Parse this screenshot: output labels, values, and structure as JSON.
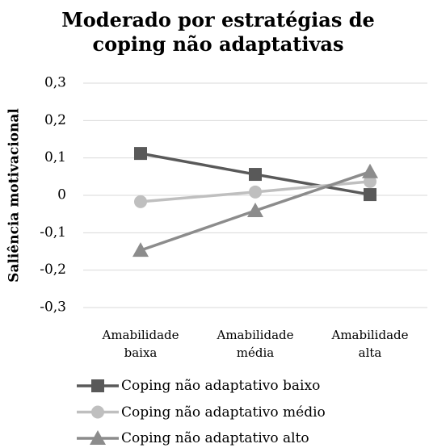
{
  "chart_data": {
    "type": "line",
    "title": "Moderado por estratégias de coping não adaptativas",
    "y_label": "Saliência motivacional",
    "categories": [
      "Amabilidade baixa",
      "Amabilidade média",
      "Amabilidade alta"
    ],
    "series": [
      {
        "name": "Coping não adaptativo baixo",
        "color": "#595959",
        "marker": "square",
        "values": [
          0.112,
          0.056,
          0.002
        ]
      },
      {
        "name": "Coping não adaptativo médio",
        "color": "#bfbfbf",
        "marker": "circle",
        "values": [
          -0.017,
          0.009,
          0.037
        ]
      },
      {
        "name": "Coping não adaptativo alto",
        "color": "#8c8c8c",
        "marker": "triangle",
        "values": [
          -0.147,
          -0.041,
          0.063
        ]
      }
    ],
    "ylim": [
      -0.3,
      0.3
    ],
    "yticks": [
      {
        "value": -0.3,
        "label": "-0,3"
      },
      {
        "value": -0.2,
        "label": "-0,2"
      },
      {
        "value": -0.1,
        "label": "-0,1"
      },
      0,
      {
        "value": 0.1,
        "label": "0,1"
      },
      {
        "value": 0.2,
        "label": "0,2"
      },
      {
        "value": 0.3,
        "label": "0,3"
      }
    ],
    "grid": true,
    "legend": "bottom"
  }
}
